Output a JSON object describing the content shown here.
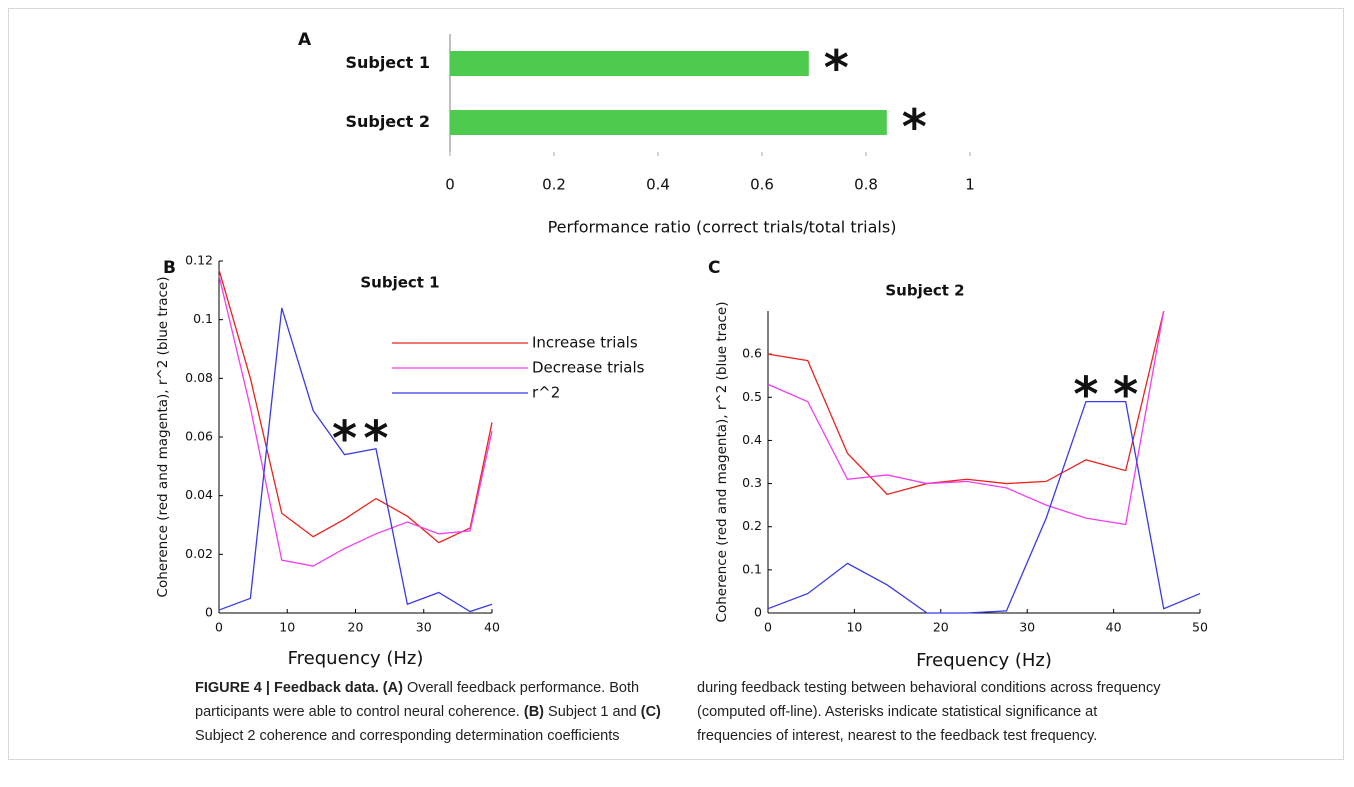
{
  "chart_data": [
    {
      "type": "hbar",
      "panel": "A",
      "x_label": "Performance ratio (correct trials/total trials)",
      "categories": [
        "Subject 1",
        "Subject 2"
      ],
      "values": [
        0.69,
        0.84
      ],
      "color": "#4ecb4e",
      "annotations": [
        "*",
        "*"
      ],
      "xlim": [
        0,
        1
      ],
      "xticks": [
        0,
        0.2,
        0.4,
        0.6,
        0.8,
        1
      ]
    },
    {
      "type": "line",
      "panel": "B",
      "title": "Subject 1",
      "x_label": "Frequency (Hz)",
      "y_label": "Coherence (red and magenta), r^2 (blue trace)",
      "x": [
        0,
        4.6,
        9.2,
        13.8,
        18.4,
        23,
        27.6,
        32.2,
        36.8,
        40
      ],
      "series": [
        {
          "name": "Increase trials",
          "color": "#e8241c",
          "values": [
            0.117,
            0.08,
            0.034,
            0.026,
            0.032,
            0.039,
            0.033,
            0.024,
            0.029,
            0.065
          ]
        },
        {
          "name": "Decrease trials",
          "color": "#f040f0",
          "values": [
            0.115,
            0.07,
            0.018,
            0.016,
            0.022,
            0.027,
            0.031,
            0.027,
            0.028,
            0.062
          ]
        },
        {
          "name": "r^2",
          "color": "#3a3ae8",
          "values": [
            0.001,
            0.005,
            0.104,
            0.069,
            0.054,
            0.056,
            0.003,
            0.007,
            0.0005,
            0.003
          ]
        }
      ],
      "annotations": [
        {
          "text": "*",
          "x": 18.4
        },
        {
          "text": "*",
          "x": 23
        }
      ],
      "legend": "upper right",
      "xlim": [
        0,
        40
      ],
      "xticks": [
        0,
        10,
        20,
        30,
        40
      ],
      "ylim": [
        0,
        0.12
      ],
      "yticks": [
        0,
        0.02,
        0.04,
        0.06,
        0.08,
        0.1,
        0.12
      ]
    },
    {
      "type": "line",
      "panel": "C",
      "title": "Subject 2",
      "x_label": "Frequency (Hz)",
      "y_label": "Coherence (red and magenta), r^2 (blue trace)",
      "x": [
        0,
        4.6,
        9.2,
        13.8,
        18.4,
        23,
        27.6,
        32.2,
        36.8,
        41.4,
        45.8,
        50
      ],
      "series": [
        {
          "color": "#e8241c",
          "values": [
            0.6,
            0.585,
            0.37,
            0.275,
            0.3,
            0.31,
            0.3,
            0.305,
            0.355,
            0.33,
            0.7,
            null
          ]
        },
        {
          "color": "#f040f0",
          "values": [
            0.53,
            0.49,
            0.31,
            0.32,
            0.3,
            0.305,
            0.29,
            0.25,
            0.22,
            0.205,
            0.7,
            null
          ]
        },
        {
          "color": "#3a3ae8",
          "values": [
            0.01,
            0.045,
            0.115,
            0.065,
            0.0,
            0.0,
            0.005,
            0.22,
            0.49,
            0.49,
            0.01,
            0.045
          ]
        }
      ],
      "annotations": [
        {
          "text": "*",
          "x": 36.8
        },
        {
          "text": "*",
          "x": 41.4
        }
      ],
      "xlim": [
        0,
        50
      ],
      "xticks": [
        0,
        10,
        20,
        30,
        40,
        50
      ],
      "ylim": [
        0,
        0.7
      ],
      "yticks": [
        0,
        0.1,
        0.2,
        0.3,
        0.4,
        0.5,
        0.6
      ]
    }
  ],
  "caption": [
    {
      "text": "FIGURE 4 | Feedback data.",
      "bold": true
    },
    {
      "text": " ",
      "bold": false
    },
    {
      "text": "(A)",
      "bold": true
    },
    {
      "text": " Overall feedback performance. Both participants were able to control neural coherence. ",
      "bold": false
    },
    {
      "text": "(B)",
      "bold": true
    },
    {
      "text": " Subject 1 and ",
      "bold": false
    },
    {
      "text": "(C)",
      "bold": true
    },
    {
      "text": " Subject 2 coherence and corresponding determination coefficients during feedback testing between behavioral conditions across frequency (computed off-line). Asterisks indicate statistical significance at frequencies of interest, nearest to the feedback test frequency.",
      "bold": false
    }
  ]
}
